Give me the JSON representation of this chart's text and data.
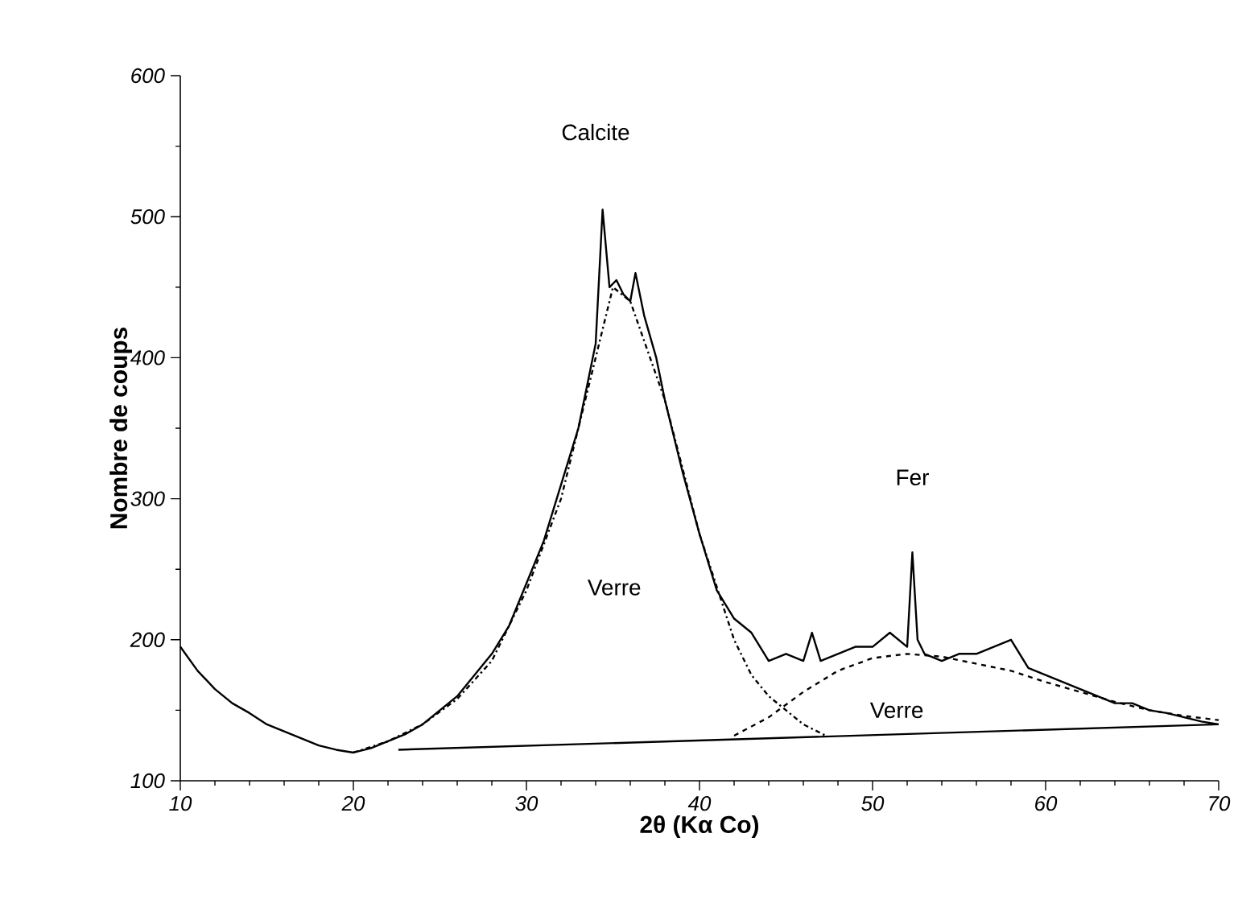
{
  "chart_data": {
    "type": "line",
    "xlabel": "2θ (Kα Co)",
    "ylabel": "Nombre de coups",
    "xlim": [
      10,
      70
    ],
    "ylim": [
      100,
      600
    ],
    "xticks": [
      10,
      20,
      30,
      40,
      50,
      60,
      70
    ],
    "yticks": [
      100,
      200,
      300,
      400,
      500,
      600
    ],
    "series": [
      {
        "color": "#000000",
        "line_style": "solid",
        "x": [
          10,
          11,
          12,
          13,
          14,
          15,
          16,
          17,
          18,
          19,
          20,
          21,
          22,
          23,
          24,
          25,
          26,
          27,
          28,
          29,
          30,
          31,
          32,
          33,
          34,
          34.4,
          34.8,
          35.2,
          35.6,
          36,
          36.3,
          36.8,
          37.5,
          38,
          39,
          40,
          41,
          42,
          43,
          44,
          45,
          46,
          46.5,
          47,
          48,
          49,
          50,
          51,
          52,
          52.3,
          52.6,
          53,
          54,
          55,
          56,
          57,
          58,
          59,
          60,
          61,
          62,
          63,
          64,
          65,
          66,
          67,
          68,
          69,
          70
        ],
        "values": [
          195,
          178,
          165,
          155,
          148,
          140,
          135,
          130,
          125,
          122,
          120,
          123,
          128,
          133,
          140,
          150,
          160,
          175,
          190,
          210,
          240,
          270,
          310,
          350,
          410,
          505,
          450,
          455,
          445,
          440,
          460,
          430,
          400,
          370,
          320,
          275,
          235,
          215,
          205,
          185,
          190,
          185,
          205,
          185,
          190,
          195,
          195,
          205,
          195,
          262,
          200,
          190,
          185,
          190,
          190,
          195,
          200,
          180,
          175,
          170,
          165,
          160,
          155,
          155,
          150,
          148,
          145,
          142,
          140
        ]
      },
      {
        "color": "#000000",
        "line_style": "dashdot",
        "x": [
          20,
          22,
          24,
          26,
          28,
          30,
          32,
          34,
          35,
          36,
          38,
          40,
          42,
          43,
          44,
          45,
          46,
          47.3
        ],
        "values": [
          120,
          128,
          140,
          158,
          185,
          235,
          300,
          400,
          450,
          440,
          370,
          275,
          200,
          175,
          160,
          150,
          140,
          132
        ]
      },
      {
        "color": "#000000",
        "line_style": "dashed",
        "x": [
          42,
          44,
          46,
          48,
          50,
          52,
          54,
          56,
          58,
          60,
          62,
          64,
          66,
          68,
          70
        ],
        "values": [
          132,
          145,
          163,
          178,
          187,
          190,
          188,
          183,
          178,
          170,
          163,
          156,
          150,
          146,
          143
        ]
      },
      {
        "color": "#000000",
        "line_style": "solid",
        "x": [
          22.6,
          70
        ],
        "values": [
          122,
          140
        ]
      }
    ],
    "annotations": [
      "Calcite",
      "Verre",
      "Fer",
      "Verre"
    ]
  }
}
